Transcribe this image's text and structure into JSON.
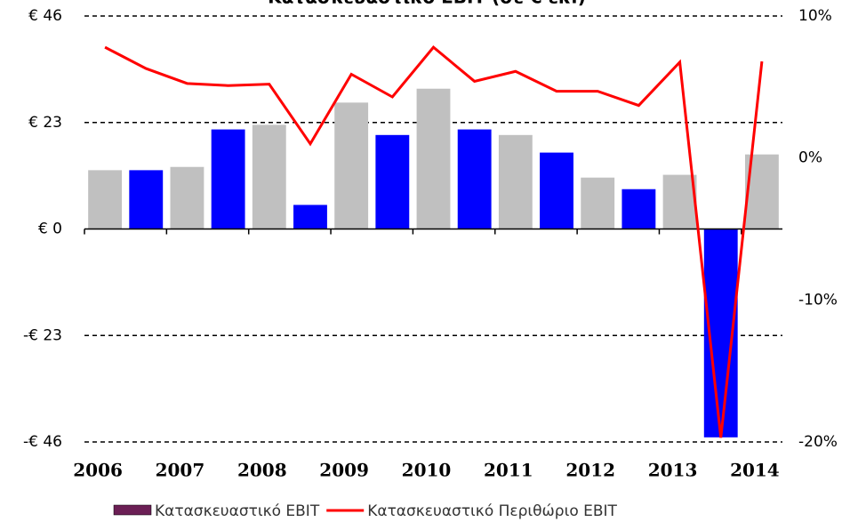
{
  "chart_data": {
    "type": "bar_line",
    "title": "Κατασκευαστικό EBIT (σε € εκ.)",
    "categories": [
      "2006",
      null,
      "2007",
      null,
      "2008",
      null,
      "2009",
      null,
      "2010",
      null,
      "2011",
      null,
      "2012",
      null,
      "2013",
      null,
      "2014"
    ],
    "ylim": [
      -46,
      46
    ],
    "yticks": [
      {
        "value": 46,
        "label": "€ 46"
      },
      {
        "value": 23,
        "label": "€ 23"
      },
      {
        "value": 0,
        "label": "€ 0"
      },
      {
        "value": -23,
        "label": "-€ 23"
      },
      {
        "value": -46,
        "label": "-€ 46"
      }
    ],
    "y2lim": [
      -20,
      10
    ],
    "y2ticks": [
      {
        "value": 10,
        "label": "10%"
      },
      {
        "value": 0,
        "label": "0%"
      },
      {
        "value": -10,
        "label": "-10%"
      },
      {
        "value": -20,
        "label": "-20%"
      }
    ],
    "grid": true,
    "bar_colors": [
      "#c0c0c0",
      "#0000ff",
      "#c0c0c0",
      "#0000ff",
      "#c0c0c0",
      "#0000ff",
      "#c0c0c0",
      "#0000ff",
      "#c0c0c0",
      "#0000ff",
      "#c0c0c0",
      "#0000ff",
      "#c0c0c0",
      "#0000ff",
      "#c0c0c0",
      "#0000ff",
      "#c0c0c0"
    ],
    "series": [
      {
        "name": "Κατασκευαστικό EBIT",
        "color": "#6b1f55",
        "kind": "bar",
        "values": [
          12.7,
          12.7,
          13.4,
          21.5,
          22.5,
          5.2,
          27.3,
          20.3,
          30.3,
          21.5,
          20.3,
          16.5,
          11.1,
          8.6,
          11.7,
          -45,
          16.1
        ]
      },
      {
        "name": "Κατασκευαστικό Περιθώριο EBIT",
        "color": "#ff0000",
        "kind": "line",
        "axis": "y2",
        "values": [
          7.8,
          6.3,
          5.25,
          5.1,
          5.2,
          1.0,
          5.9,
          4.3,
          7.8,
          5.4,
          6.1,
          4.7,
          4.7,
          3.7,
          6.75,
          -19.7,
          6.8
        ]
      }
    ]
  }
}
